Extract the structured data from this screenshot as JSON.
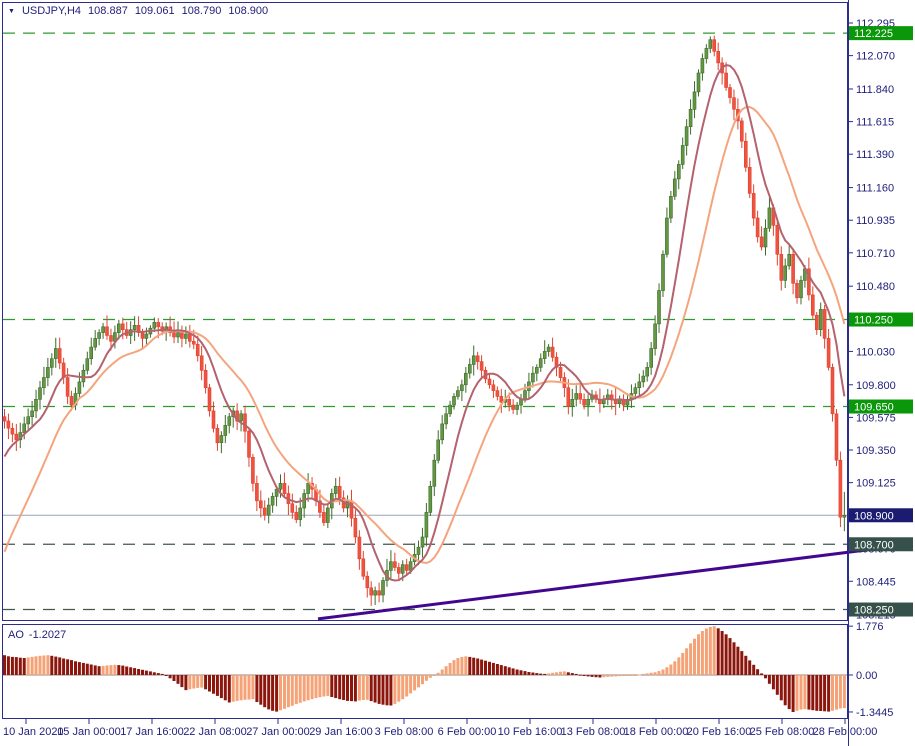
{
  "header": {
    "collapse_icon": "▼",
    "symbol_period": "USDJPY,H4",
    "open": "108.887",
    "high": "109.061",
    "low": "108.790",
    "close": "108.900"
  },
  "colors": {
    "bg": "#ffffff",
    "border": "#2c2c8a",
    "text": "#21217c",
    "candle_up": "#639743",
    "candle_up_border": "#3e6b2a",
    "candle_down": "#ef5340",
    "candle_down_border": "#df4330",
    "ma_fast": "#b4626e",
    "ma_slow": "#f4a57d",
    "level_green": "#2f9b2f",
    "level_green_box": "#0a970a",
    "level_dark": "#415850",
    "level_dark_box": "#36514a",
    "price_line": "#9aa4b8",
    "price_box": "#1b1b72",
    "trend": "#43078f",
    "ao_up": "#f5a277",
    "ao_down": "#8c150c",
    "ao_zero": "#8a8a8a"
  },
  "chart_data": {
    "type": "candlestick+histogram",
    "main": {
      "title": "USDJPY H4",
      "first_open": 109.58,
      "closes": [
        109.55,
        109.5,
        109.46,
        109.42,
        109.47,
        109.53,
        109.58,
        109.62,
        109.7,
        109.78,
        109.85,
        109.92,
        109.98,
        110.05,
        109.95,
        109.85,
        109.72,
        109.66,
        109.74,
        109.82,
        109.9,
        109.98,
        110.06,
        110.12,
        110.16,
        110.2,
        110.14,
        110.1,
        110.16,
        110.22,
        110.18,
        110.14,
        110.18,
        110.21,
        110.16,
        110.12,
        110.15,
        110.19,
        110.23,
        110.2,
        110.17,
        110.2,
        110.16,
        110.13,
        110.16,
        110.12,
        110.15,
        110.1,
        110.08,
        110.0,
        109.9,
        109.78,
        109.62,
        109.5,
        109.4,
        109.45,
        109.52,
        109.58,
        109.62,
        109.55,
        109.6,
        109.48,
        109.3,
        109.12,
        109.0,
        108.95,
        108.9,
        108.97,
        109.03,
        109.08,
        109.12,
        109.05,
        108.98,
        108.92,
        108.87,
        108.95,
        109.05,
        109.12,
        109.08,
        109.0,
        108.92,
        108.85,
        108.95,
        109.05,
        109.1,
        109.02,
        108.95,
        109.0,
        108.88,
        108.75,
        108.6,
        108.48,
        108.4,
        108.35,
        108.38,
        108.35,
        108.45,
        108.52,
        108.58,
        108.54,
        108.5,
        108.56,
        108.52,
        108.58,
        108.63,
        108.68,
        108.75,
        108.92,
        109.1,
        109.28,
        109.42,
        109.53,
        109.6,
        109.66,
        109.72,
        109.76,
        109.8,
        109.88,
        109.94,
        110.0,
        109.96,
        109.9,
        109.84,
        109.8,
        109.76,
        109.72,
        109.68,
        109.7,
        109.66,
        109.63,
        109.66,
        109.7,
        109.76,
        109.82,
        109.88,
        109.92,
        109.98,
        110.03,
        110.06,
        109.99,
        109.92,
        109.85,
        109.78,
        109.65,
        109.7,
        109.74,
        109.7,
        109.66,
        109.7,
        109.73,
        109.7,
        109.67,
        109.7,
        109.73,
        109.7,
        109.67,
        109.7,
        109.66,
        109.7,
        109.74,
        109.78,
        109.82,
        109.86,
        109.92,
        110.05,
        110.22,
        110.45,
        110.7,
        110.95,
        111.1,
        111.22,
        111.32,
        111.45,
        111.58,
        111.7,
        111.82,
        111.95,
        112.05,
        112.12,
        112.18,
        112.1,
        112.02,
        111.95,
        111.85,
        111.78,
        111.7,
        111.62,
        111.48,
        111.3,
        111.12,
        110.95,
        110.82,
        110.75,
        110.88,
        111.02,
        110.9,
        110.7,
        110.52,
        110.62,
        110.7,
        110.5,
        110.4,
        110.52,
        110.6,
        110.42,
        110.28,
        110.18,
        110.32,
        110.12,
        109.92,
        109.6,
        109.28,
        108.887,
        108.9
      ],
      "last_bar": {
        "o": 108.887,
        "h": 109.061,
        "l": 108.79,
        "c": 108.9
      },
      "ma_fast": {
        "period": 9,
        "pre": [
          109.05,
          109.1,
          109.15,
          109.2,
          109.25,
          109.3,
          109.35,
          109.4,
          109.45
        ]
      },
      "ma_slow": {
        "period": 20,
        "pre": [
          108.1,
          108.15,
          108.2,
          108.25,
          108.3,
          108.35,
          108.4,
          108.45,
          108.5,
          108.55,
          108.6,
          108.65,
          108.7,
          108.75,
          108.8,
          108.85,
          108.9,
          108.95,
          109.0,
          109.05
        ]
      },
      "y_ticks": [
        "112.295",
        "112.070",
        "111.840",
        "111.615",
        "111.390",
        "111.160",
        "110.935",
        "110.710",
        "110.480",
        "110.030",
        "109.800",
        "109.575",
        "109.350",
        "109.125",
        "108.670",
        "108.445",
        "108.215"
      ],
      "levels": [
        {
          "label": "112.225",
          "price": 112.225,
          "type": "green"
        },
        {
          "label": "110.250",
          "price": 110.25,
          "type": "green"
        },
        {
          "label": "109.650",
          "price": 109.65,
          "type": "green"
        },
        {
          "label": "108.700",
          "price": 108.7,
          "type": "dark"
        },
        {
          "label": "108.250",
          "price": 108.25,
          "type": "dark"
        }
      ],
      "current_price": "108.900",
      "price_boxes": [
        {
          "label": "112.225",
          "price": 112.225,
          "type": "green"
        },
        {
          "label": "110.250",
          "price": 110.25,
          "type": "green"
        },
        {
          "label": "109.650",
          "price": 109.65,
          "type": "green"
        },
        {
          "label": "108.900",
          "price": 108.9,
          "type": "navy"
        },
        {
          "label": "108.700",
          "price": 108.7,
          "type": "dark"
        },
        {
          "label": "108.250",
          "price": 108.25,
          "type": "dark"
        }
      ],
      "trendline": {
        "x1": 318,
        "price1": 108.185,
        "x2": 877,
        "price2": 108.67
      },
      "y_range": [
        108.15,
        112.34
      ]
    },
    "ao": {
      "label": "AO",
      "value": "-1.2027",
      "ticks": [
        {
          "label": "1.776",
          "v": 1.776
        },
        {
          "label": "0.00",
          "v": 0
        },
        {
          "label": "-1.3445",
          "v": -1.3445
        }
      ],
      "values": [
        0.72,
        0.68,
        0.66,
        0.65,
        0.63,
        0.62,
        0.64,
        0.66,
        0.68,
        0.7,
        0.71,
        0.72,
        0.7,
        0.67,
        0.64,
        0.6,
        0.57,
        0.54,
        0.5,
        0.47,
        0.44,
        0.41,
        0.38,
        0.35,
        0.32,
        0.33,
        0.35,
        0.36,
        0.37,
        0.36,
        0.34,
        0.31,
        0.28,
        0.25,
        0.22,
        0.19,
        0.16,
        0.13,
        0.1,
        0.07,
        0.04,
        -0.02,
        -0.12,
        -0.22,
        -0.32,
        -0.44,
        -0.55,
        -0.52,
        -0.49,
        -0.47,
        -0.46,
        -0.52,
        -0.6,
        -0.68,
        -0.76,
        -0.84,
        -0.92,
        -1.0,
        -0.97,
        -0.94,
        -0.92,
        -0.9,
        -0.89,
        -0.88,
        -0.98,
        -1.08,
        -1.17,
        -1.25,
        -1.3,
        -1.33,
        -1.28,
        -1.23,
        -1.17,
        -1.12,
        -1.06,
        -1.01,
        -0.96,
        -0.92,
        -0.88,
        -0.84,
        -0.81,
        -0.78,
        -0.76,
        -0.8,
        -0.84,
        -0.88,
        -0.91,
        -0.94,
        -0.95,
        -0.96,
        -0.93,
        -0.91,
        -0.9,
        -0.95,
        -1.0,
        -1.05,
        -1.08,
        -1.1,
        -1.11,
        -1.05,
        -0.97,
        -0.88,
        -0.78,
        -0.67,
        -0.56,
        -0.45,
        -0.33,
        -0.21,
        -0.1,
        -0.02,
        0.08,
        0.2,
        0.32,
        0.44,
        0.54,
        0.62,
        0.66,
        0.68,
        0.66,
        0.63,
        0.6,
        0.56,
        0.52,
        0.48,
        0.44,
        0.4,
        0.36,
        0.32,
        0.28,
        0.24,
        0.2,
        0.17,
        0.14,
        0.11,
        0.09,
        0.07,
        0.05,
        0.04,
        0.06,
        0.08,
        0.1,
        0.12,
        0.13,
        0.1,
        0.07,
        0.04,
        0.01,
        -0.02,
        -0.05,
        -0.07,
        -0.08,
        -0.09,
        -0.08,
        -0.07,
        -0.06,
        -0.05,
        -0.04,
        -0.03,
        -0.02,
        -0.01,
        0.0,
        0.02,
        0.04,
        0.06,
        0.08,
        0.1,
        0.14,
        0.2,
        0.28,
        0.38,
        0.5,
        0.64,
        0.8,
        0.97,
        1.15,
        1.32,
        1.48,
        1.6,
        1.69,
        1.75,
        1.776,
        1.7,
        1.6,
        1.48,
        1.34,
        1.19,
        1.03,
        0.87,
        0.7,
        0.53,
        0.37,
        0.21,
        0.06,
        -0.12,
        -0.32,
        -0.52,
        -0.72,
        -0.92,
        -1.1,
        -1.24,
        -1.3445,
        -1.3,
        -1.26,
        -1.24,
        -1.26,
        -1.28,
        -1.3,
        -1.31,
        -1.32,
        -1.33,
        -1.3,
        -1.26,
        -1.22,
        -1.2027
      ]
    },
    "x_ticks": [
      "10 Jan 2020",
      "15 Jan 00:00",
      "17 Jan 16:00",
      "22 Jan 08:00",
      "27 Jan 00:00",
      "29 Jan 16:00",
      "3 Feb 08:00",
      "6 Feb 00:00",
      "10 Feb 16:00",
      "13 Feb 08:00",
      "18 Feb 00:00",
      "20 Feb 16:00",
      "25 Feb 08:00",
      "28 Feb 00:00"
    ]
  }
}
